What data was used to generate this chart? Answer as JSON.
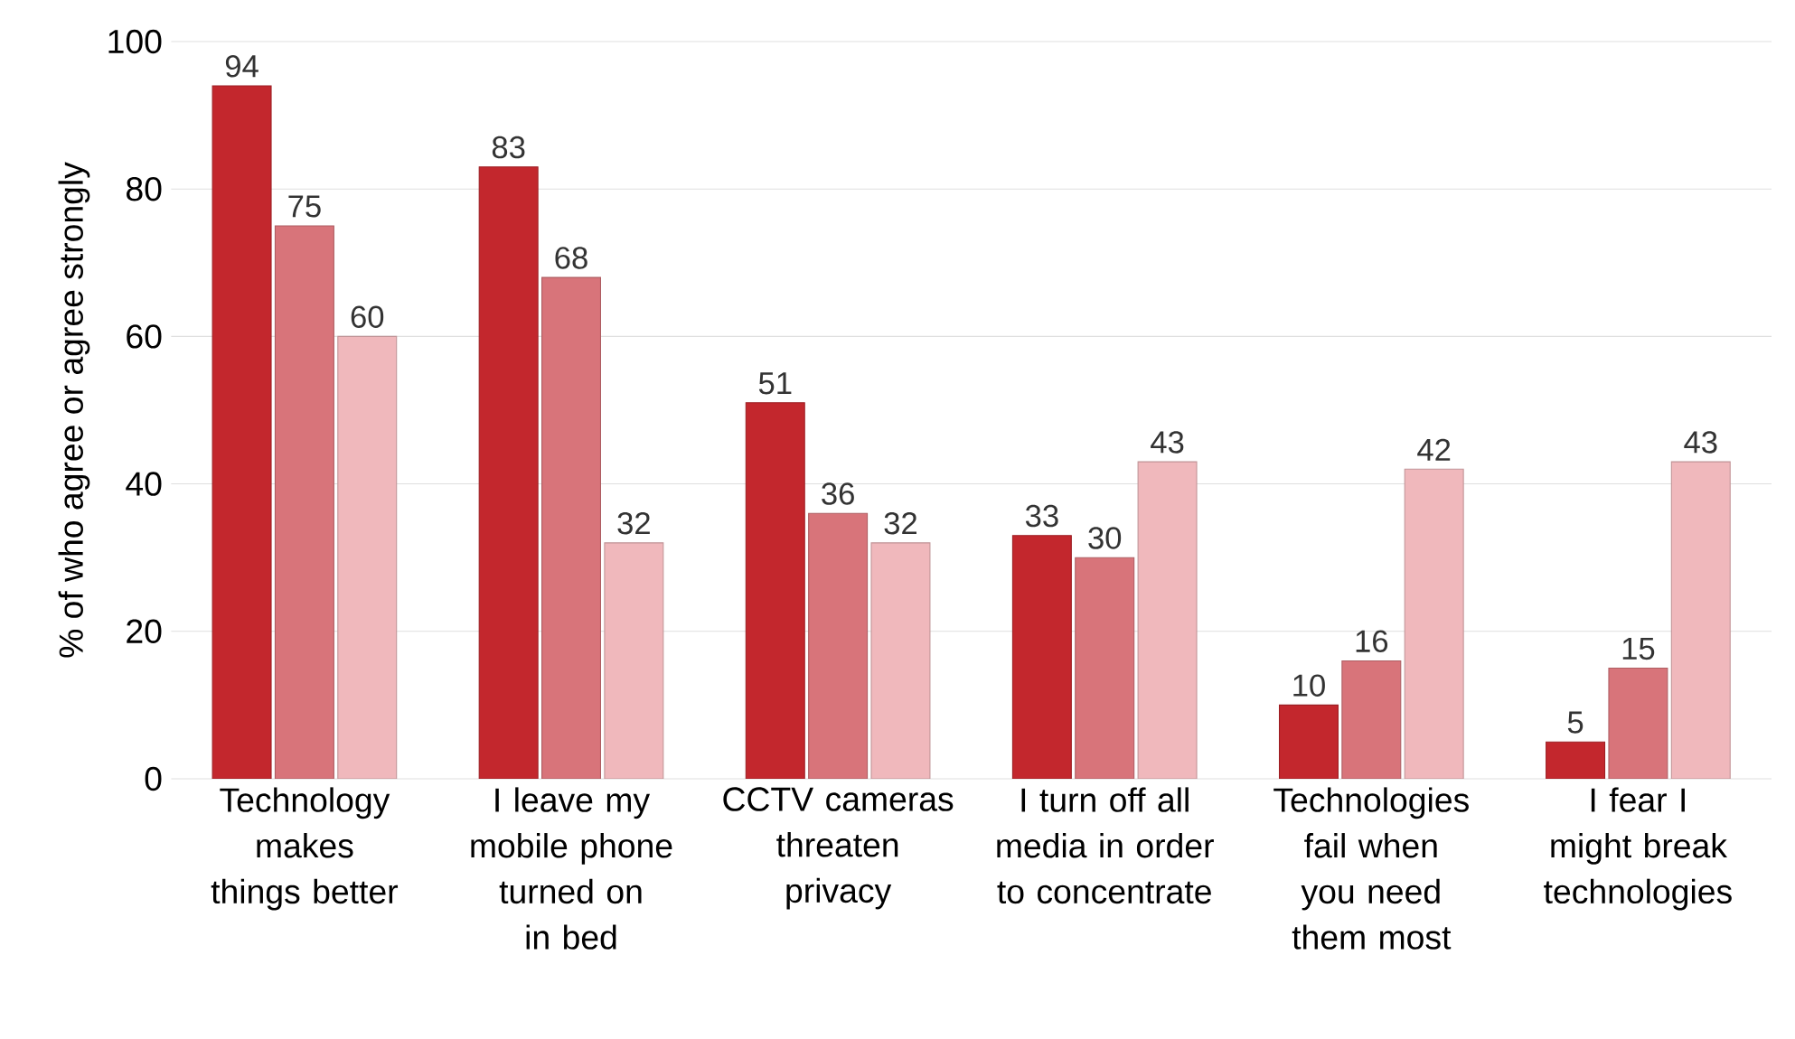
{
  "chart_data": {
    "type": "bar",
    "ylabel": "% of who agree or agree strongly",
    "categories": [
      "Technology makes things better",
      "I leave my mobile phone turned on in bed",
      "CCTV cameras threaten privacy",
      "I turn off all media in order to concentrate",
      "Technologies fail when you need them most",
      "I fear I might break technologies"
    ],
    "series": [
      {
        "color": "#c3272d",
        "values": [
          94,
          83,
          51,
          33,
          10,
          5
        ]
      },
      {
        "color": "#d8747a",
        "values": [
          75,
          68,
          36,
          30,
          16,
          15
        ]
      },
      {
        "color": "#f0b8bc",
        "values": [
          60,
          32,
          32,
          43,
          42,
          43
        ]
      }
    ],
    "ylim": [
      0,
      100
    ],
    "yticks": [
      0,
      20,
      40,
      60,
      80,
      100
    ],
    "grid": "y",
    "data_labels": true
  }
}
